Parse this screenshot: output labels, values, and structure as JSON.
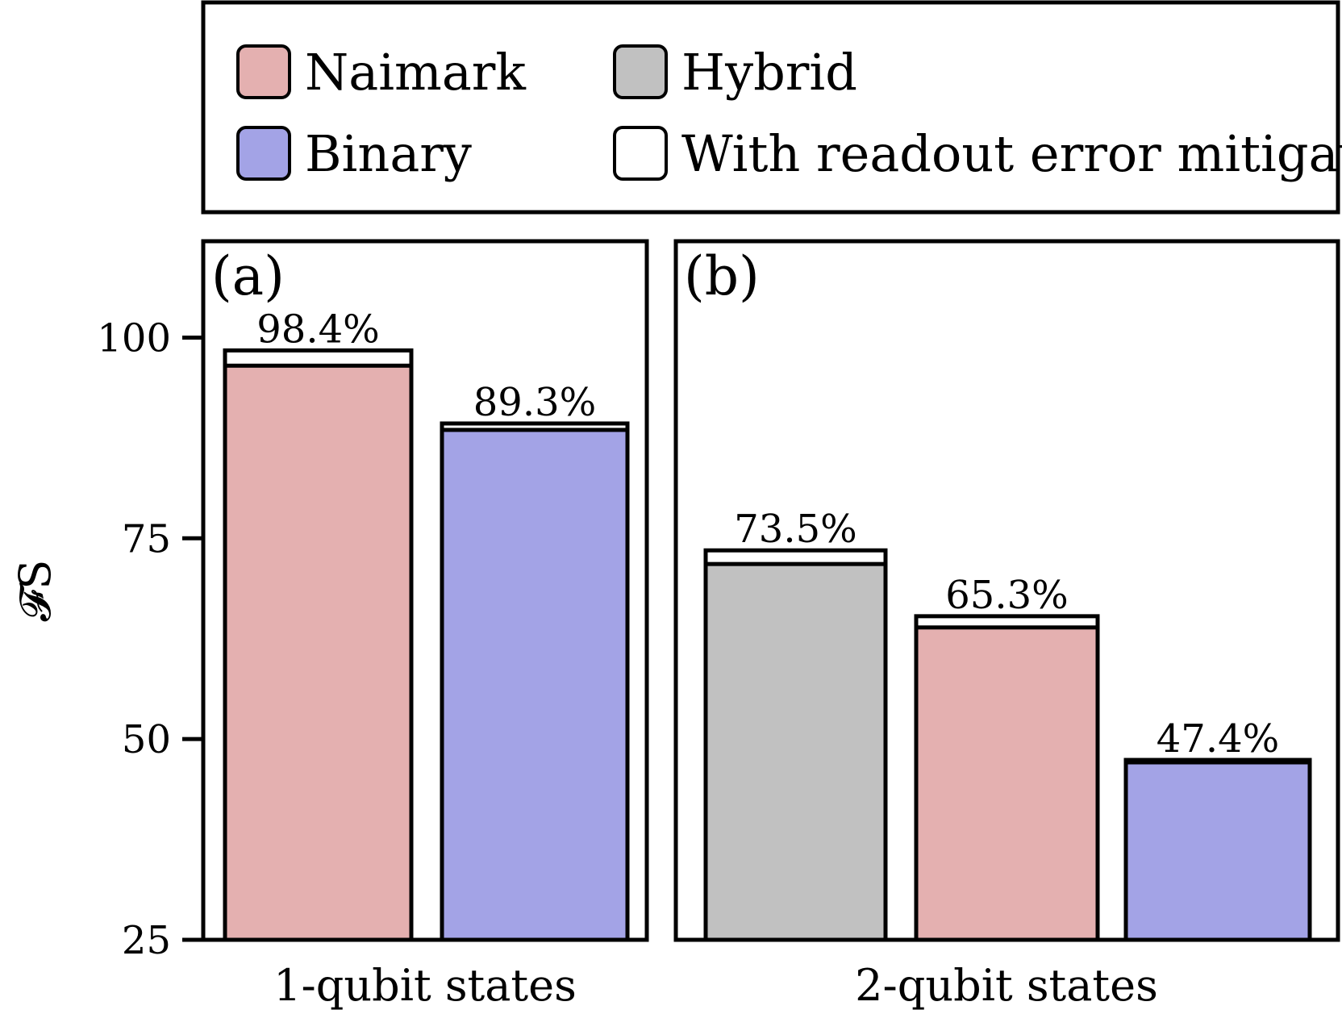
{
  "colors": {
    "naimark": "#e4b0b0",
    "binary": "#a3a3e6",
    "hybrid": "#c1c1c1",
    "mitigation": "#ffffff"
  },
  "legend": {
    "items": [
      {
        "key": "naimark",
        "label": "Naimark",
        "color": "#e4b0b0"
      },
      {
        "key": "hybrid",
        "label": "Hybrid",
        "color": "#c1c1c1"
      },
      {
        "key": "binary",
        "label": "Binary",
        "color": "#a3a3e6"
      },
      {
        "key": "mitigation",
        "label": "With readout error mitigation",
        "color": "#ffffff"
      }
    ]
  },
  "chart_data": {
    "type": "bar",
    "ylabel": "𝓕S",
    "ylim": [
      25,
      112
    ],
    "yticks": [
      25,
      50,
      75,
      100
    ],
    "panels": [
      {
        "tag": "(a)",
        "category": "1-qubit states",
        "bars": [
          {
            "series": "Naimark",
            "color_key": "naimark",
            "value": 96.5,
            "mitigated": 98.4,
            "label": "98.4%"
          },
          {
            "series": "Binary",
            "color_key": "binary",
            "value": 88.5,
            "mitigated": 89.3,
            "label": "89.3%"
          }
        ]
      },
      {
        "tag": "(b)",
        "category": "2-qubit states",
        "bars": [
          {
            "series": "Hybrid",
            "color_key": "hybrid",
            "value": 71.8,
            "mitigated": 73.5,
            "label": "73.5%"
          },
          {
            "series": "Naimark",
            "color_key": "naimark",
            "value": 63.9,
            "mitigated": 65.3,
            "label": "65.3%"
          },
          {
            "series": "Binary",
            "color_key": "binary",
            "value": 47.1,
            "mitigated": 47.4,
            "label": "47.4%"
          }
        ]
      }
    ]
  }
}
